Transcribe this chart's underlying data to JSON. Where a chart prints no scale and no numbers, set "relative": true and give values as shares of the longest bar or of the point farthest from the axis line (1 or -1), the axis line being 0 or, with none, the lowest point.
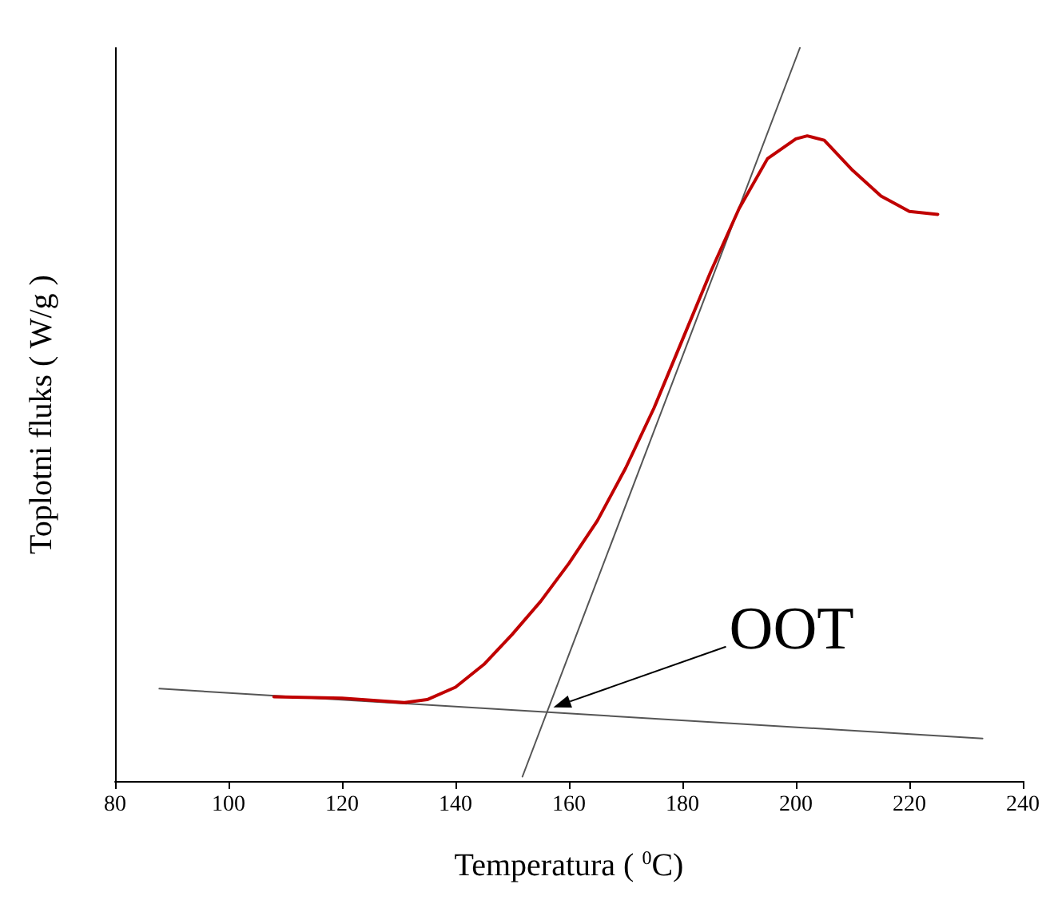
{
  "chart_data": {
    "type": "line",
    "relative": true,
    "xlabel": "Temperatura ( $^{0}$C)",
    "ylabel": "Toplotni fluks ( W/g )",
    "xlim": [
      80,
      240
    ],
    "xticks": [
      80,
      100,
      120,
      140,
      160,
      180,
      200,
      220,
      240
    ],
    "grid": false,
    "legend": false,
    "marker": "none",
    "line_style": "solid",
    "annotations": [
      "OOT"
    ],
    "series": [
      {
        "color": "#c00000",
        "x": [
          108,
          120,
          131,
          135,
          140,
          145,
          150,
          155,
          160,
          165,
          170,
          175,
          180,
          185,
          190,
          195,
          200,
          202,
          205,
          210,
          215,
          220,
          225
        ],
        "values": [
          0.115,
          0.113,
          0.107,
          0.111,
          0.128,
          0.159,
          0.2,
          0.245,
          0.297,
          0.355,
          0.427,
          0.509,
          0.602,
          0.695,
          0.781,
          0.849,
          0.876,
          0.88,
          0.874,
          0.833,
          0.798,
          0.777,
          0.773
        ]
      },
      {
        "color": "#555555",
        "x": [
          87.8,
          232.9
        ],
        "values": [
          0.126,
          0.058
        ]
      },
      {
        "color": "#555555",
        "x": [
          151.8,
          200.7
        ],
        "values": [
          0.006,
          1
        ]
      }
    ]
  }
}
